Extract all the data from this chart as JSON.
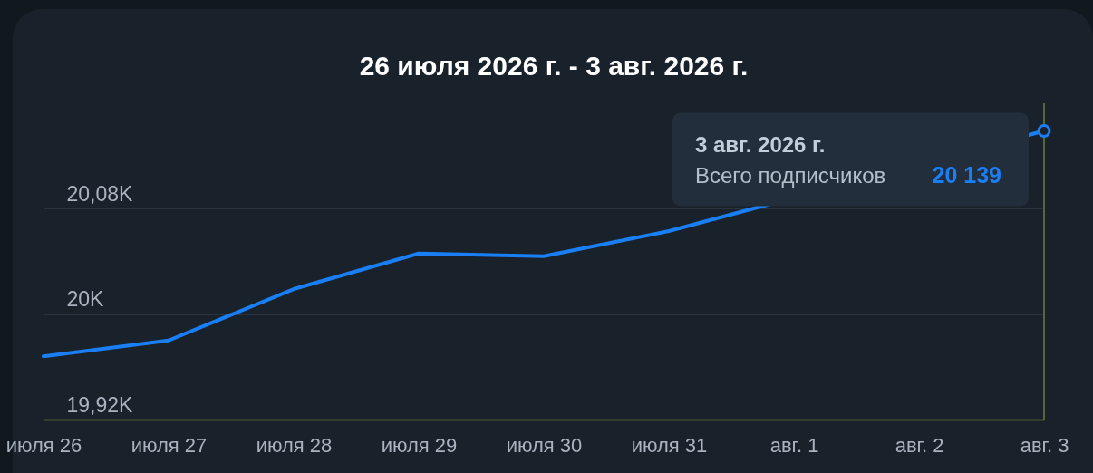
{
  "chart_data": {
    "type": "line",
    "title": "26 июля 2026 г. - 3 авг. 2026 г.",
    "x": [
      "2026-07-26",
      "2026-07-27",
      "2026-07-28",
      "2026-07-29",
      "2026-07-30",
      "2026-07-31",
      "2026-08-03"
    ],
    "values": [
      19968,
      19980,
      20019,
      20046,
      20044,
      20063,
      20139
    ],
    "color": "#1a7ff5",
    "xlim": [
      "2026-07-26",
      "2026-08-03"
    ],
    "xticks": [
      {
        "value": "2026-07-26",
        "label": "июля 26"
      },
      {
        "value": "2026-07-27",
        "label": "июля 27"
      },
      {
        "value": "2026-07-28",
        "label": "июля 28"
      },
      {
        "value": "2026-07-29",
        "label": "июля 29"
      },
      {
        "value": "2026-07-30",
        "label": "июля 30"
      },
      {
        "value": "2026-07-31",
        "label": "июля 31"
      },
      {
        "value": "2026-08-01",
        "label": "авг. 1"
      },
      {
        "value": "2026-08-02",
        "label": "авг. 2"
      },
      {
        "value": "2026-08-03",
        "label": "авг. 3"
      }
    ],
    "ylim": [
      19920,
      20160
    ],
    "yticks": [
      {
        "value": 19920,
        "label": "19,92K"
      },
      {
        "value": 20000,
        "label": "20K"
      },
      {
        "value": 20080,
        "label": "20,08K"
      }
    ],
    "grid": "y",
    "ref_lines": [
      {
        "axis": "x",
        "value": "2026-08-03",
        "color": "#56683a"
      }
    ],
    "annotations": [
      "3 авг. 2026 г.",
      "Всего подписчиков",
      {
        "text": "20 139",
        "x": "2026-08-03",
        "y": 20139
      }
    ]
  }
}
